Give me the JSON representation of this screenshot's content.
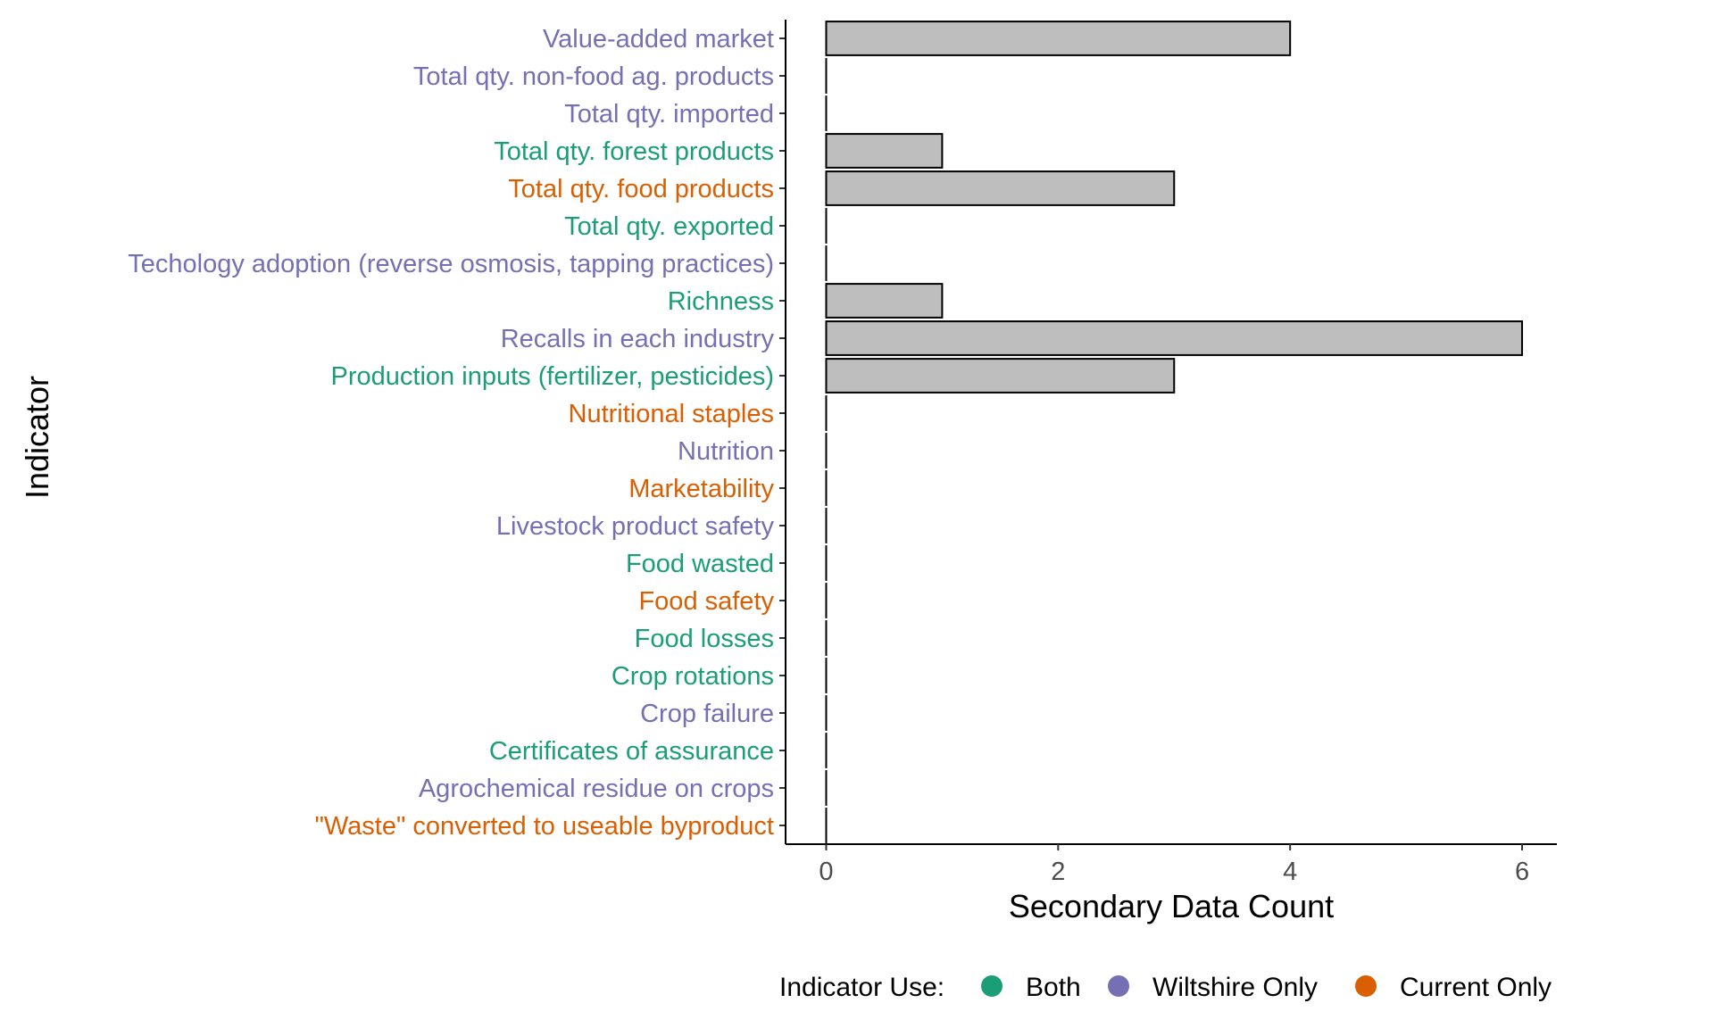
{
  "chart_data": {
    "type": "bar",
    "orientation": "horizontal",
    "xlabel": "Secondary Data Count",
    "ylabel": "Indicator",
    "xlim": [
      -0.35,
      6.3
    ],
    "xticks": [
      0,
      2,
      4,
      6
    ],
    "bar_fill": "#bebebe",
    "bar_stroke": "#000000",
    "grid": false,
    "legend": {
      "title": "Indicator Use:",
      "position": "bottom",
      "items": [
        {
          "key": "both",
          "label": "Both",
          "color": "#1b9e77"
        },
        {
          "key": "wiltshire",
          "label": "Wiltshire Only",
          "color": "#7570b3"
        },
        {
          "key": "current",
          "label": "Current Only",
          "color": "#d95f02"
        }
      ]
    },
    "categories": [
      {
        "label": "Value-added market",
        "value": 4,
        "use": "wiltshire"
      },
      {
        "label": "Total qty. non-food ag. products",
        "value": 0,
        "use": "wiltshire"
      },
      {
        "label": "Total qty. imported",
        "value": 0,
        "use": "wiltshire"
      },
      {
        "label": "Total qty. forest products",
        "value": 1,
        "use": "both"
      },
      {
        "label": "Total qty. food products",
        "value": 3,
        "use": "current"
      },
      {
        "label": "Total qty. exported",
        "value": 0,
        "use": "both"
      },
      {
        "label": "Techology adoption (reverse osmosis, tapping practices)",
        "value": 0,
        "use": "wiltshire"
      },
      {
        "label": "Richness",
        "value": 1,
        "use": "both"
      },
      {
        "label": "Recalls in each industry",
        "value": 6,
        "use": "wiltshire"
      },
      {
        "label": "Production inputs (fertilizer, pesticides)",
        "value": 3,
        "use": "both"
      },
      {
        "label": "Nutritional staples",
        "value": 0,
        "use": "current"
      },
      {
        "label": "Nutrition",
        "value": 0,
        "use": "wiltshire"
      },
      {
        "label": "Marketability",
        "value": 0,
        "use": "current"
      },
      {
        "label": "Livestock product safety",
        "value": 0,
        "use": "wiltshire"
      },
      {
        "label": "Food wasted",
        "value": 0,
        "use": "both"
      },
      {
        "label": "Food safety",
        "value": 0,
        "use": "current"
      },
      {
        "label": "Food losses",
        "value": 0,
        "use": "both"
      },
      {
        "label": "Crop rotations",
        "value": 0,
        "use": "both"
      },
      {
        "label": "Crop failure",
        "value": 0,
        "use": "wiltshire"
      },
      {
        "label": "Certificates of assurance",
        "value": 0,
        "use": "both"
      },
      {
        "label": "Agrochemical residue on crops",
        "value": 0,
        "use": "wiltshire"
      },
      {
        "label": "\"Waste\" converted to useable byproduct",
        "value": 0,
        "use": "current"
      }
    ]
  }
}
